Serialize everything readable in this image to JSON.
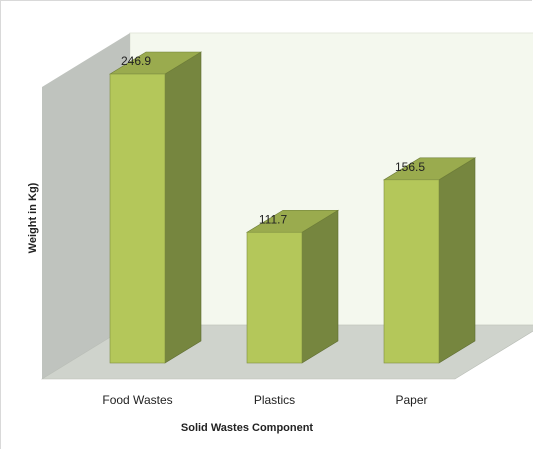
{
  "chart_data": {
    "type": "bar",
    "categories": [
      "Food Wastes",
      "Plastics",
      "Paper"
    ],
    "values": [
      246.9,
      111.7,
      156.5
    ],
    "value_labels": [
      "246.9",
      "111.7",
      "156.5"
    ],
    "title": "",
    "xlabel": "Solid Wastes Component",
    "ylabel": "Weight in Kg)",
    "ylim": [
      0,
      260
    ],
    "grid": false,
    "legend": "none",
    "three_d": true
  },
  "colors": {
    "bar_front": "#b4c75a",
    "bar_side": "#76863f",
    "bar_top": "#9aab4e",
    "back_wall": "#f4f8ee",
    "side_wall": "#bfc3be",
    "floor": "#cfd3cc",
    "frame_border": "#d9d9d9"
  }
}
